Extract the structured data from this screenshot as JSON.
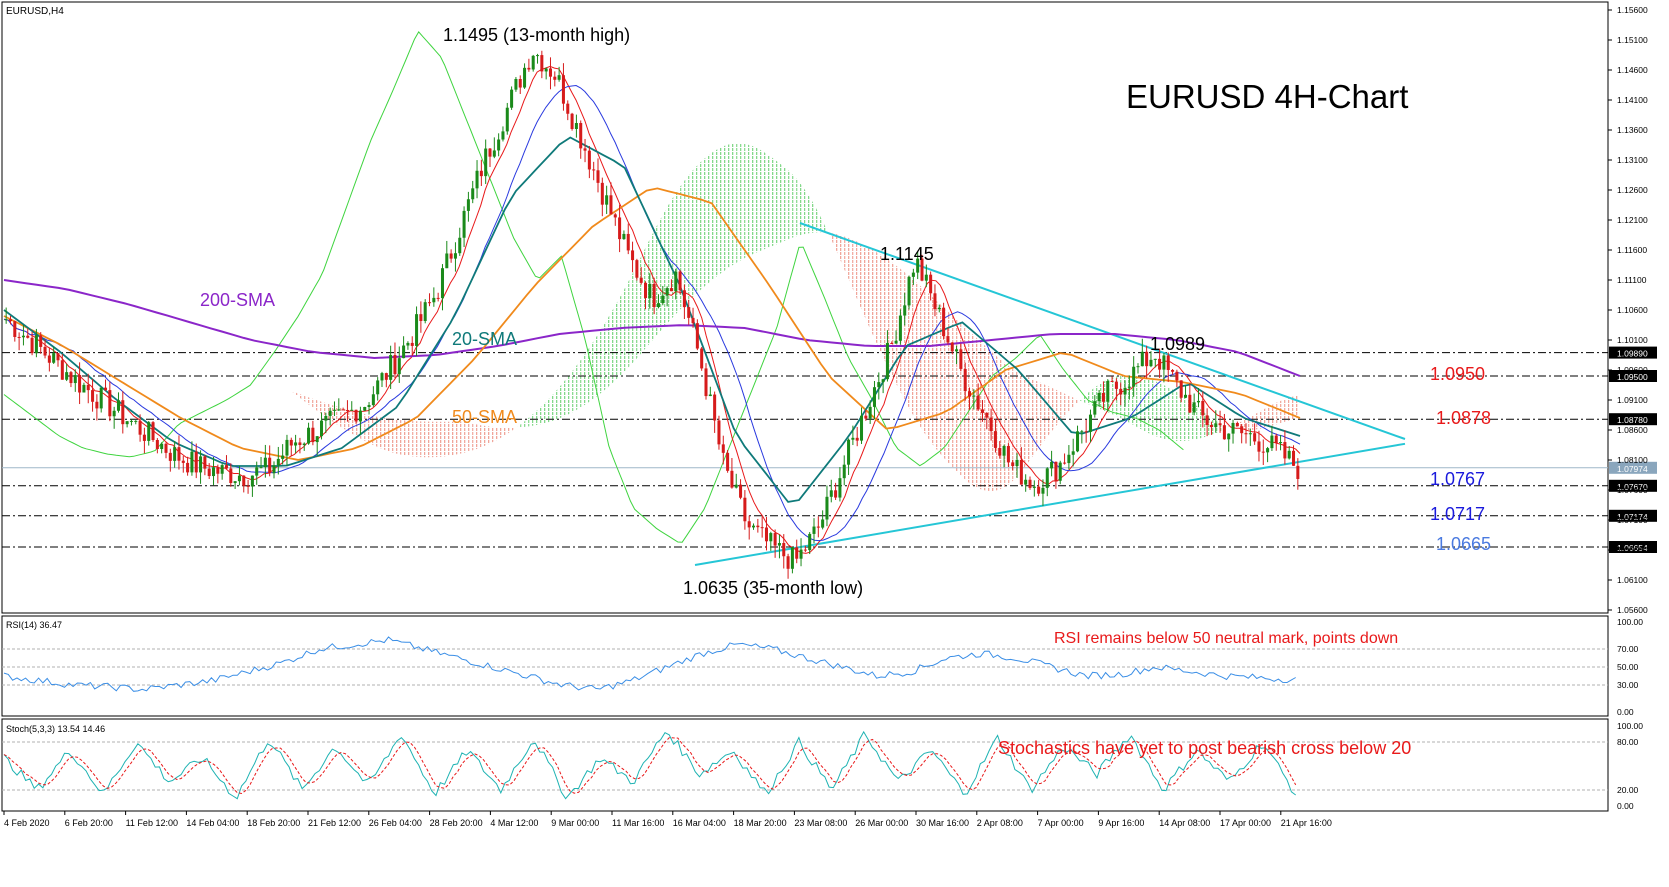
{
  "chart_data": [
    {
      "type": "candlestick",
      "symbol_label": "EURUSD,H4",
      "title": "EURUSD 4H-Chart",
      "ylim": [
        1.056,
        1.156
      ],
      "y_ticks": [
        "1.15600",
        "1.15100",
        "1.14600",
        "1.14100",
        "1.13600",
        "1.13100",
        "1.12600",
        "1.12100",
        "1.11600",
        "1.11100",
        "1.10600",
        "1.10100",
        "1.09600",
        "1.09100",
        "1.08600",
        "1.08100",
        "1.07600",
        "1.07100",
        "1.06600",
        "1.06100",
        "1.05600"
      ],
      "x_ticks": [
        "4 Feb 2020",
        "6 Feb 20:00",
        "11 Feb 12:00",
        "14 Feb 04:00",
        "18 Feb 20:00",
        "21 Feb 12:00",
        "26 Feb 04:00",
        "28 Feb 20:00",
        "4 Mar 12:00",
        "9 Mar 00:00",
        "11 Mar 16:00",
        "16 Mar 04:00",
        "18 Mar 20:00",
        "23 Mar 08:00",
        "26 Mar 00:00",
        "30 Mar 16:00",
        "2 Apr 08:00",
        "7 Apr 00:00",
        "9 Apr 16:00",
        "14 Apr 08:00",
        "17 Apr 00:00",
        "21 Apr 16:00"
      ],
      "close_path": [
        1.1045,
        1.101,
        1.0975,
        1.094,
        1.091,
        1.088,
        1.085,
        1.082,
        1.08,
        1.079,
        1.0785,
        1.0795,
        1.084,
        1.086,
        1.088,
        1.0905,
        1.096,
        1.102,
        1.109,
        1.12,
        1.131,
        1.14,
        1.1495,
        1.145,
        1.135,
        1.125,
        1.115,
        1.108,
        1.112,
        1.098,
        1.08,
        1.07,
        1.0665,
        1.064,
        1.07,
        1.08,
        1.09,
        1.1,
        1.1145,
        1.105,
        1.095,
        1.088,
        1.08,
        1.077,
        1.08,
        1.086,
        1.092,
        1.095,
        1.0989,
        1.093,
        1.088,
        1.086,
        1.085,
        1.083,
        1.0797
      ],
      "series": [
        {
          "name": "200-SMA",
          "color": "#8b26c9",
          "values": [
            1.111,
            1.1095,
            1.107,
            1.104,
            1.101,
            1.099,
            1.098,
            1.0985,
            1.1,
            1.102,
            1.103,
            1.1035,
            1.103,
            1.101,
            1.1,
            1.1,
            1.101,
            1.102,
            1.102,
            1.101,
            1.099,
            1.095
          ]
        },
        {
          "name": "50-SMA",
          "color": "#f08a1c",
          "values": [
            1.105,
            1.1,
            1.094,
            1.088,
            1.083,
            1.081,
            1.083,
            1.088,
            1.098,
            1.11,
            1.12,
            1.1265,
            1.124,
            1.11,
            1.095,
            1.086,
            1.089,
            1.096,
            1.099,
            1.095,
            1.094,
            1.092,
            1.088
          ]
        },
        {
          "name": "20-SMA",
          "color": "#0f7a7a",
          "values": [
            1.106,
            1.099,
            1.091,
            1.084,
            1.08,
            1.08,
            1.083,
            1.09,
            1.105,
            1.125,
            1.135,
            1.13,
            1.11,
            1.085,
            1.073,
            1.085,
            1.1,
            1.104,
            1.096,
            1.085,
            1.088,
            1.094,
            1.088,
            1.085
          ]
        }
      ],
      "levels": [
        {
          "value": "1.0989",
          "label": "1.0989",
          "tag": "1.09890",
          "color": "#000000"
        },
        {
          "value": "1.0950",
          "label": "1.0950",
          "tag": "1.09500",
          "color": "#e8191a"
        },
        {
          "value": "1.0878",
          "label": "1.0878",
          "tag": "1.08780",
          "color": "#e8191a"
        },
        {
          "value": "1.0767",
          "label": "1.0767",
          "tag": "1.07670",
          "color": "#1a1adc"
        },
        {
          "value": "1.0717",
          "label": "1.0717",
          "tag": "1.07174",
          "color": "#1a1adc"
        },
        {
          "value": "1.0665",
          "label": "1.0665",
          "tag": "1.06654",
          "color": "#4a7ae0"
        }
      ],
      "current_price": {
        "value": 1.0797,
        "tag": "1.07974"
      },
      "annotations": [
        {
          "text": "1.1495 (13-month high)",
          "value": 1.1495
        },
        {
          "text": "1.1145",
          "value": 1.1145
        },
        {
          "text": "1.0989",
          "value": 1.0989
        },
        {
          "text": "1.0635 (35-month low)",
          "value": 1.0635
        }
      ],
      "sma_labels": [
        "200-SMA",
        "20-SMA",
        "50-SMA"
      ],
      "trendlines": {
        "upper": [
          1.1205,
          1.0845
        ],
        "lower": [
          1.0635,
          1.0837
        ]
      }
    },
    {
      "type": "line",
      "label": "RSI(14) 36.47",
      "ylim": [
        0,
        100
      ],
      "y_ticks": [
        "100.00",
        "70.00",
        "50.00",
        "30.00",
        "0.00"
      ],
      "note": "RSI remains below 50 neutral mark, points down",
      "values": [
        40,
        35,
        30,
        28,
        25,
        30,
        35,
        45,
        55,
        70,
        75,
        80,
        70,
        60,
        50,
        40,
        30,
        25,
        35,
        50,
        65,
        75,
        70,
        60,
        50,
        40,
        45,
        60,
        65,
        60,
        50,
        40,
        42,
        50,
        45,
        40,
        38,
        36
      ]
    },
    {
      "type": "line",
      "label": "Stoch(5,3,3) 13.54 14.46",
      "ylim": [
        0,
        100
      ],
      "y_ticks": [
        "100.00",
        "80.00",
        "20.00",
        "0.00"
      ],
      "note": "Stochastics have yet to post bearish cross below 20",
      "values": [
        60,
        20,
        70,
        15,
        80,
        30,
        60,
        10,
        85,
        20,
        75,
        25,
        90,
        15,
        70,
        20,
        85,
        10,
        60,
        30,
        95,
        40,
        70,
        15,
        80,
        20,
        90,
        30,
        70,
        15,
        85,
        20,
        75,
        40,
        90,
        20,
        70,
        30,
        80,
        15
      ]
    }
  ]
}
